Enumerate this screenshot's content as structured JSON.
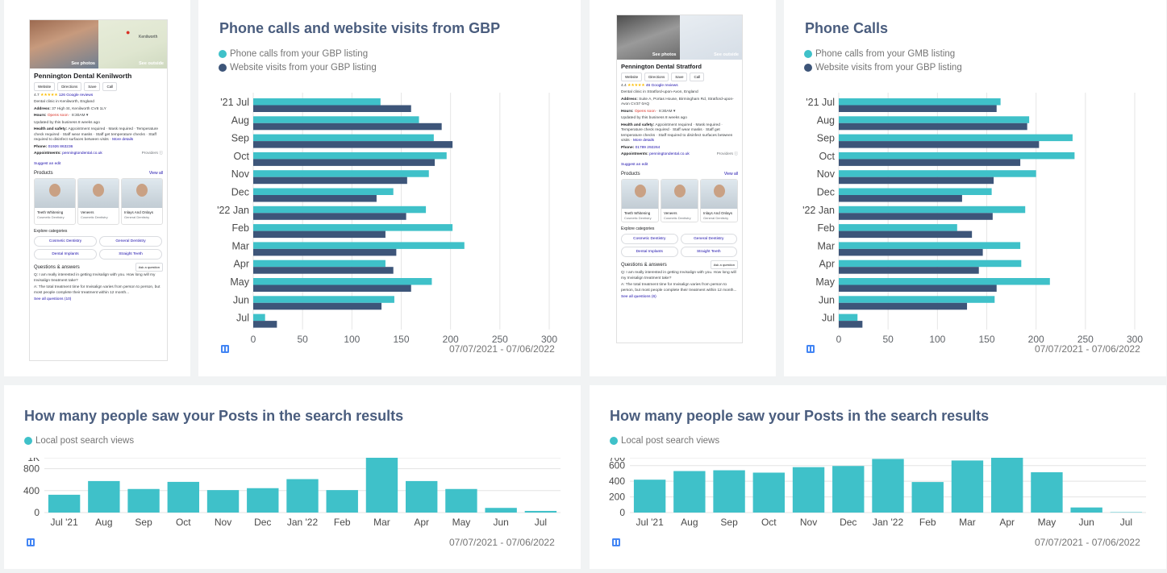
{
  "colors": {
    "teal": "#3fc1c9",
    "navy": "#3d5579",
    "title": "#4a5d7e"
  },
  "cards": {
    "gbp1": {
      "photo_left_label": "See photos",
      "photo_right_label": "See outside",
      "map_label": "Kenilworth",
      "name": "Pennington Dental Kenilworth",
      "buttons": [
        "Website",
        "Directions",
        "Save",
        "Call"
      ],
      "rating": "4.7",
      "stars": "★★★★★",
      "reviews": "126 Google reviews",
      "category": "Dental clinic in Kenilworth, England",
      "address_label": "Address:",
      "address": "37 High St, Kenilworth CV8 1LY",
      "hours_label": "Hours:",
      "hours_status": "Opens soon",
      "hours_time": "· 8:30AM ▾",
      "updated": "Updated by this business 8 weeks ago",
      "health_label": "Health and safety:",
      "health": "Appointment required · Mask required · Temperature check required · Staff wear masks · Staff get temperature checks · Staff required to disinfect surfaces between visits ·",
      "more_details": "More details",
      "phone_label": "Phone:",
      "phone": "01926 863236",
      "appointments_label": "Appointments:",
      "appointments": "penningtondental.co.uk",
      "provider": "Providers ⓘ",
      "suggest": "Suggest an edit",
      "products_label": "Products",
      "view_all": "View all",
      "products": [
        {
          "name": "Teeth Whitening",
          "sub": "Cosmetic Dentistry"
        },
        {
          "name": "Veneers",
          "sub": "Cosmetic Dentistry"
        },
        {
          "name": "Inlays And Onlays",
          "sub": "General Dentistry"
        }
      ],
      "explore_label": "Explore categories",
      "chips": [
        "Cosmetic Dentistry",
        "General Dentistry",
        "Dental Implants",
        "Straight Teeth"
      ],
      "qa_label": "Questions & answers",
      "ask": "Ask a question",
      "question": "Q: I am really interested in getting Invisalign with you. How long will my Invisalign treatment take?",
      "answer": "A: The total treatment time for Invisalign varies from person to person, but most people complete their treatment within 12 month...",
      "see_all": "See all questions (10)"
    },
    "gbp2": {
      "photo_left_label": "See photos",
      "photo_right_label": "See outside",
      "name": "Pennington Dental Stratford",
      "buttons": [
        "Website",
        "Directions",
        "Save",
        "Call"
      ],
      "rating": "4.4",
      "stars": "★★★★★",
      "reviews": "46 Google reviews",
      "category": "Dental clinic in Stratford-upon-Avon, England",
      "address_label": "Address:",
      "address": "Suite A, Portas House, Birmingham Rd, Stratford-upon-Avon CV37 0AQ",
      "hours_label": "Hours:",
      "hours_status": "Opens soon",
      "hours_time": "· 8:30AM ▾",
      "updated": "Updated by this business 8 weeks ago",
      "health_label": "Health and safety:",
      "health": "Appointment required · Mask required · Temperature check required · Staff wear masks · Staff get temperature checks · Staff required to disinfect surfaces between visits ·",
      "more_details": "More details",
      "phone_label": "Phone:",
      "phone": "01789 292264",
      "appointments_label": "Appointments:",
      "appointments": "penningtondental.co.uk",
      "provider": "Providers ⓘ",
      "suggest": "Suggest an edit",
      "products_label": "Products",
      "view_all": "View all",
      "products": [
        {
          "name": "Teeth Whitening",
          "sub": "Cosmetic Dentistry"
        },
        {
          "name": "Veneers",
          "sub": "Cosmetic Dentistry"
        },
        {
          "name": "Inlays And Onlays",
          "sub": "General Dentistry"
        }
      ],
      "explore_label": "Explore categories",
      "chips": [
        "Cosmetic Dentistry",
        "General Dentistry",
        "Dental Implants",
        "Straight Teeth"
      ],
      "qa_label": "Questions & answers",
      "ask": "Ask a question",
      "question": "Q: I am really interested in getting Invisalign with you. How long will my Invisalign treatment take?",
      "answer": "A: The total treatment time for Invisalign varies from person to person, but most people complete their treatment within 12 month...",
      "see_all": "See all questions (6)"
    }
  },
  "chart_data": [
    {
      "type": "bar",
      "orientation": "horizontal",
      "title": "Phone calls and website visits from GBP",
      "categories": [
        "'21 Jul",
        "Aug",
        "Sep",
        "Oct",
        "Nov",
        "Dec",
        "'22 Jan",
        "Feb",
        "Mar",
        "Apr",
        "May",
        "Jun",
        "Jul"
      ],
      "series": [
        {
          "name": "Phone calls from your GBP listing",
          "color": "#3fc1c9",
          "values": [
            129,
            168,
            183,
            196,
            178,
            142,
            175,
            202,
            214,
            134,
            181,
            143,
            12
          ]
        },
        {
          "name": "Website visits from your GBP listing",
          "color": "#3d5579",
          "values": [
            160,
            191,
            202,
            184,
            156,
            125,
            155,
            134,
            145,
            142,
            160,
            130,
            24
          ]
        }
      ],
      "xlim": [
        0,
        300
      ],
      "xticks": [
        0,
        50,
        100,
        150,
        200,
        250,
        300
      ],
      "date_range": "07/07/2021 - 07/06/2022"
    },
    {
      "type": "bar",
      "orientation": "horizontal",
      "title": "Phone Calls",
      "categories": [
        "'21 Jul",
        "Aug",
        "Sep",
        "Oct",
        "Nov",
        "Dec",
        "'22 Jan",
        "Feb",
        "Mar",
        "Apr",
        "May",
        "Jun",
        "Jul"
      ],
      "series": [
        {
          "name": "Phone calls from your GMB listing",
          "color": "#3fc1c9",
          "values": [
            164,
            193,
            237,
            239,
            200,
            155,
            189,
            120,
            184,
            185,
            214,
            158,
            19
          ]
        },
        {
          "name": "Website visits from your GBP listing",
          "color": "#3d5579",
          "values": [
            160,
            191,
            203,
            184,
            157,
            125,
            156,
            135,
            146,
            142,
            160,
            130,
            24
          ]
        }
      ],
      "xlim": [
        0,
        300
      ],
      "xticks": [
        0,
        50,
        100,
        150,
        200,
        250,
        300
      ],
      "date_range": "07/07/2021 - 07/06/2022"
    },
    {
      "type": "bar",
      "title": "How many people saw your Posts in the search results",
      "categories": [
        "Jul '21",
        "Aug",
        "Sep",
        "Oct",
        "Nov",
        "Dec",
        "Jan '22",
        "Feb",
        "Mar",
        "Apr",
        "May",
        "Jun",
        "Jul"
      ],
      "series": [
        {
          "name": "Local post search views",
          "color": "#3fc1c9",
          "values": [
            325,
            575,
            430,
            560,
            410,
            445,
            610,
            410,
            1000,
            575,
            430,
            85,
            30
          ]
        }
      ],
      "ylim": [
        0,
        1000
      ],
      "yticks": [
        0,
        400,
        800
      ],
      "ytick_top_label": "1K",
      "date_range": "07/07/2021 - 07/06/2022"
    },
    {
      "type": "bar",
      "title": "How many people saw your Posts in the search results",
      "categories": [
        "Jul '21",
        "Aug",
        "Sep",
        "Oct",
        "Nov",
        "Dec",
        "Jan '22",
        "Feb",
        "Mar",
        "Apr",
        "May",
        "Jun",
        "Jul"
      ],
      "series": [
        {
          "name": "Local post search views",
          "color": "#3fc1c9",
          "values": [
            420,
            530,
            540,
            510,
            580,
            595,
            685,
            390,
            665,
            700,
            515,
            65,
            5
          ]
        }
      ],
      "ylim": [
        0,
        700
      ],
      "yticks": [
        0,
        200,
        400,
        600,
        700
      ],
      "date_range": "07/07/2021 - 07/06/2022"
    }
  ]
}
